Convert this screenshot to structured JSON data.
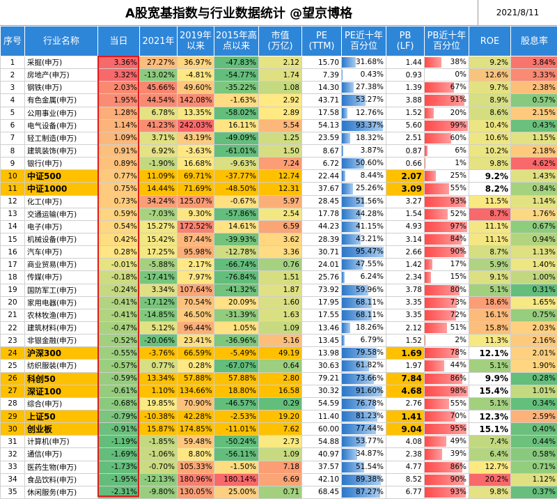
{
  "title": "A股宽基指数与行业数据统计  @望京博格",
  "date": "2021/8/11",
  "columns": [
    "序号",
    "行业名称",
    "当日",
    "2021年",
    "2019年\n以来",
    "2015年高\n点以来",
    "市值\n(万亿)",
    "PE\n(TTM)",
    "PE近十年\n百分位",
    "PB\n(LF)",
    "PB近十年\n百分位",
    "ROE",
    "股息率"
  ],
  "rows": [
    {
      "idx": "1",
      "name": "采掘(申万)",
      "today": "3.36%",
      "y2021": "27.27%",
      "since2019": "36.97%",
      "since2015": "-47.83%",
      "mcap": "2.12",
      "pe": "15.70",
      "pe_pct": "31.68%",
      "pb": "1.44",
      "pb_pct": "38%",
      "roe": "9.2%",
      "div": "3.84%",
      "bold": false,
      "c_today": "#f8696b",
      "c_2021": "#fcbc7b",
      "c_2019": "#fed580",
      "c_2015": "#63be7b",
      "c_mcap": "#e6e383",
      "c_pb": "#ffffff",
      "c_roe": "#dfe182",
      "c_div": "#f8756e"
    },
    {
      "idx": "2",
      "name": "房地产(申万)",
      "today": "3.32%",
      "y2021": "-13.02%",
      "since2019": "-4.81%",
      "since2015": "-54.77%",
      "mcap": "1.74",
      "pe": "7.39",
      "pe_pct": "0.43%",
      "pb": "0.93",
      "pb_pct": "0%",
      "roe": "12.6%",
      "div": "3.33%",
      "bold": false,
      "c_today": "#f8696b",
      "c_2021": "#8ccb7e",
      "c_2019": "#ffe784",
      "c_2015": "#63be7b",
      "c_mcap": "#dee082",
      "c_pb": "#ffffff",
      "c_roe": "#f8c47d",
      "c_div": "#f98a73"
    },
    {
      "idx": "3",
      "name": "钢铁(申万)",
      "today": "2.03%",
      "y2021": "45.66%",
      "since2019": "49.60%",
      "since2015": "-35.22%",
      "mcap": "1.08",
      "pe": "14.30",
      "pe_pct": "27.38%",
      "pb": "1.39",
      "pb_pct": "67%",
      "roe": "9.7%",
      "div": "2.38%",
      "bold": false,
      "c_today": "#f98a72",
      "c_2021": "#f98770",
      "c_2019": "#fdc87e",
      "c_2015": "#7dc67d",
      "c_mcap": "#c5d980",
      "c_pb": "#ffffff",
      "c_roe": "#e3e283",
      "c_div": "#fcbf7b"
    },
    {
      "idx": "4",
      "name": "有色金属(申万)",
      "today": "1.95%",
      "y2021": "44.54%",
      "since2019": "142.08%",
      "since2015": "-1.63%",
      "mcap": "2.92",
      "pe": "43.71",
      "pe_pct": "53.27%",
      "pb": "3.88",
      "pb_pct": "91%",
      "roe": "8.9%",
      "div": "0.57%",
      "bold": false,
      "c_today": "#f98c73",
      "c_2021": "#f98a71",
      "c_2019": "#f98c72",
      "c_2015": "#ffdc81",
      "c_mcap": "#fee983",
      "c_pb": "#ffffff",
      "c_roe": "#d7df82",
      "c_div": "#87c97e"
    },
    {
      "idx": "5",
      "name": "公用事业(申万)",
      "today": "1.28%",
      "y2021": "6.78%",
      "since2019": "13.35%",
      "since2015": "-58.02%",
      "mcap": "2.89",
      "pe": "17.58",
      "pe_pct": "12.76%",
      "pb": "1.52",
      "pb_pct": "20%",
      "roe": "8.6%",
      "div": "2.15%",
      "bold": false,
      "c_today": "#fbae79",
      "c_2021": "#e4e283",
      "c_2019": "#f6e883",
      "c_2015": "#63be7b",
      "c_mcap": "#fee983",
      "c_pb": "#ffffff",
      "c_roe": "#d4de81",
      "c_div": "#fdca7d"
    },
    {
      "idx": "6",
      "name": "电气设备(申万)",
      "today": "1.14%",
      "y2021": "41.23%",
      "since2019": "242.03%",
      "since2015": "16.11%",
      "mcap": "5.54",
      "pe": "54.13",
      "pe_pct": "93.37%",
      "pb": "5.60",
      "pb_pct": "99%",
      "roe": "10.4%",
      "div": "0.43%",
      "bold": false,
      "c_today": "#fcb47a",
      "c_2021": "#f98e73",
      "c_2019": "#f8696b",
      "c_2015": "#fee482",
      "c_mcap": "#fcb77a",
      "c_pb": "#ffffff",
      "c_roe": "#ece582",
      "c_div": "#6ac07c"
    },
    {
      "idx": "7",
      "name": "轻工制造(申万)",
      "today": "1.09%",
      "y2021": "3.71%",
      "since2019": "43.19%",
      "since2015": "-49.09%",
      "mcap": "1.25",
      "pe": "23.59",
      "pe_pct": "18.32%",
      "pb": "2.51",
      "pb_pct": "60%",
      "roe": "10.6%",
      "div": "1.15%",
      "bold": false,
      "c_today": "#fcb77a",
      "c_2021": "#e1e182",
      "c_2019": "#fdcb7e",
      "c_2015": "#63be7b",
      "c_mcap": "#cfdc81",
      "c_pb": "#ffffff",
      "c_roe": "#eee683",
      "c_div": "#e3e283"
    },
    {
      "idx": "8",
      "name": "建筑装饰(申万)",
      "today": "0.91%",
      "y2021": "6.92%",
      "since2019": "-3.63%",
      "since2015": "-61.01%",
      "mcap": "1.50",
      "pe": "8.67",
      "pe_pct": "3.87%",
      "pb": "0.87",
      "pb_pct": "6%",
      "roe": "10.2%",
      "div": "2.18%",
      "bold": false,
      "c_today": "#fdc07c",
      "c_2021": "#e4e283",
      "c_2019": "#ffe784",
      "c_2015": "#63be7b",
      "c_mcap": "#d6de81",
      "c_pb": "#ffffff",
      "c_roe": "#ebe582",
      "c_div": "#fdc97d"
    },
    {
      "idx": "9",
      "name": "银行(申万)",
      "today": "0.89%",
      "y2021": "-1.90%",
      "since2019": "16.68%",
      "since2015": "-9.63%",
      "mcap": "7.24",
      "pe": "6.72",
      "pe_pct": "50.60%",
      "pb": "0.66",
      "pb_pct": "1%",
      "roe": "9.8%",
      "div": "4.62%",
      "bold": false,
      "c_today": "#fdc17c",
      "c_2021": "#c3d880",
      "c_2019": "#fbe883",
      "c_2015": "#d9df82",
      "c_mcap": "#fb9d75",
      "c_pb": "#ffffff",
      "c_roe": "#e4e283",
      "c_div": "#f8696b"
    },
    {
      "idx": "10",
      "name": "中证500",
      "today": "0.77%",
      "y2021": "11.09%",
      "since2019": "69.71%",
      "since2015": "-37.77%",
      "mcap": "12.74",
      "pe": "22.44",
      "pe_pct": "8.44%",
      "pb": "2.07",
      "pb_pct": "25%",
      "roe": "9.2%",
      "div": "1.43%",
      "bold": true,
      "c_today": "#fec97d",
      "c_2021": "#ffc000",
      "c_2019": "#ffc000",
      "c_2015": "#ffc000",
      "c_mcap": "#ffc000",
      "c_pb": "#ffc000",
      "c_roe": "#ffffff",
      "c_div": "#dfe082"
    },
    {
      "idx": "11",
      "name": "中证1000",
      "today": "0.75%",
      "y2021": "14.44%",
      "since2019": "71.69%",
      "since2015": "-48.50%",
      "mcap": "12.31",
      "pe": "37.67",
      "pe_pct": "25.26%",
      "pb": "3.09",
      "pb_pct": "55%",
      "roe": "8.2%",
      "div": "0.84%",
      "bold": true,
      "c_today": "#feca7d",
      "c_2021": "#ffc000",
      "c_2019": "#ffc000",
      "c_2015": "#ffc000",
      "c_mcap": "#ffc000",
      "c_pb": "#ffc000",
      "c_roe": "#ffffff",
      "c_div": "#a5d27f"
    },
    {
      "idx": "12",
      "name": "化工(申万)",
      "today": "0.73%",
      "y2021": "34.24%",
      "since2019": "125.07%",
      "since2015": "-0.67%",
      "mcap": "5.97",
      "pe": "28.45",
      "pe_pct": "51.56%",
      "pb": "3.27",
      "pb_pct": "93%",
      "roe": "11.5%",
      "div": "1.14%",
      "bold": false,
      "c_today": "#fecb7d",
      "c_2021": "#fa9e76",
      "c_2019": "#fa9a74",
      "c_2015": "#fee082",
      "c_mcap": "#fbaf78",
      "c_pb": "#ffffff",
      "c_roe": "#f8e983",
      "c_div": "#e3e283"
    },
    {
      "idx": "13",
      "name": "交通运输(申万)",
      "today": "0.59%",
      "y2021": "-7.03%",
      "since2019": "9.30%",
      "since2015": "-57.86%",
      "mcap": "2.54",
      "pe": "17.78",
      "pe_pct": "44.28%",
      "pb": "1.54",
      "pb_pct": "52%",
      "roe": "8.7%",
      "div": "1.76%",
      "bold": false,
      "c_today": "#fed480",
      "c_2021": "#a9d27f",
      "c_2019": "#fee583",
      "c_2015": "#63be7b",
      "c_mcap": "#f2e783",
      "c_pb": "#ffffff",
      "c_roe": "#f8696b",
      "c_div": "#fbd882"
    },
    {
      "idx": "14",
      "name": "电子(申万)",
      "today": "0.54%",
      "y2021": "15.27%",
      "since2019": "172.52%",
      "since2015": "14.61%",
      "mcap": "6.59",
      "pe": "44.23",
      "pe_pct": "41.15%",
      "pb": "4.93",
      "pb_pct": "97%",
      "roe": "11.1%",
      "div": "0.67%",
      "bold": false,
      "c_today": "#fed780",
      "c_2021": "#f2e783",
      "c_2019": "#f98270",
      "c_2015": "#fee383",
      "c_mcap": "#fba475",
      "c_pb": "#ffffff",
      "c_roe": "#f4e783",
      "c_div": "#8ecc7e"
    },
    {
      "idx": "15",
      "name": "机械设备(申万)",
      "today": "0.42%",
      "y2021": "15.42%",
      "since2019": "87.44%",
      "since2015": "-39.93%",
      "mcap": "3.62",
      "pe": "28.39",
      "pe_pct": "43.21%",
      "pb": "3.14",
      "pb_pct": "84%",
      "roe": "11.1%",
      "div": "0.94%",
      "bold": false,
      "c_today": "#fede81",
      "c_2021": "#f2e783",
      "c_2019": "#fcb87b",
      "c_2015": "#74c37c",
      "c_mcap": "#fed780",
      "c_pb": "#ffffff",
      "c_roe": "#f4e783",
      "c_div": "#b2d47f"
    },
    {
      "idx": "16",
      "name": "汽车(申万)",
      "today": "0.28%",
      "y2021": "17.25%",
      "since2019": "95.98%",
      "since2015": "-12.78%",
      "mcap": "3.36",
      "pe": "30.71",
      "pe_pct": "95.47%",
      "pb": "2.66",
      "pb_pct": "90%",
      "roe": "8.7%",
      "div": "1.13%",
      "bold": false,
      "c_today": "#ffe583",
      "c_2021": "#f5e883",
      "c_2019": "#fbaf78",
      "c_2015": "#cfdc81",
      "c_mcap": "#ffdc81",
      "c_pb": "#ffffff",
      "c_roe": "#d5de81",
      "c_div": "#dfe082"
    },
    {
      "idx": "17",
      "name": "商业贸易(申万)",
      "today": "-0.01%",
      "y2021": "-5.88%",
      "since2019": "2.17%",
      "since2015": "-66.74%",
      "mcap": "0.76",
      "pe": "24.01",
      "pe_pct": "47.55%",
      "pb": "1.42",
      "pb_pct": "17%",
      "roe": "5.9%",
      "div": "1.40%",
      "bold": false,
      "c_today": "#e6e383",
      "c_2021": "#a5d17f",
      "c_2019": "#fee984",
      "c_2015": "#63be7b",
      "c_mcap": "#a6d17f",
      "c_pb": "#ffffff",
      "c_roe": "#afd380",
      "c_div": "#ede683"
    },
    {
      "idx": "18",
      "name": "传媒(申万)",
      "today": "-0.18%",
      "y2021": "-17.41%",
      "since2019": "7.97%",
      "since2015": "-76.84%",
      "mcap": "1.51",
      "pe": "25.76",
      "pe_pct": "6.24%",
      "pb": "2.34",
      "pb_pct": "15%",
      "roe": "9.1%",
      "div": "1.00%",
      "bold": false,
      "c_today": "#cddb81",
      "c_2021": "#78c57c",
      "c_2019": "#fee683",
      "c_2015": "#63be7b",
      "c_mcap": "#d6de81",
      "c_pb": "#ffffff",
      "c_roe": "#dce082",
      "c_div": "#c2d880"
    },
    {
      "idx": "19",
      "name": "国防军工(申万)",
      "today": "-0.24%",
      "y2021": "3.34%",
      "since2019": "107.64%",
      "since2015": "-41.32%",
      "mcap": "1.87",
      "pe": "73.92",
      "pe_pct": "59.96%",
      "pb": "3.78",
      "pb_pct": "80%",
      "roe": "5.1%",
      "div": "0.31%",
      "bold": false,
      "c_today": "#c5d980",
      "c_2021": "#dfe082",
      "c_2019": "#fba676",
      "c_2015": "#72c37c",
      "c_mcap": "#e0e182",
      "c_pb": "#ffffff",
      "c_roe": "#a2d07f",
      "c_div": "#63be7b"
    },
    {
      "idx": "20",
      "name": "家用电器(申万)",
      "today": "-0.41%",
      "y2021": "-17.12%",
      "since2019": "70.54%",
      "since2015": "20.09%",
      "mcap": "1.60",
      "pe": "17.95",
      "pe_pct": "68.11%",
      "pb": "3.35",
      "pb_pct": "73%",
      "roe": "18.6%",
      "div": "1.65%",
      "bold": false,
      "c_today": "#b0d47f",
      "c_2021": "#79c57c",
      "c_2019": "#fcc27c",
      "c_2015": "#fee182",
      "c_mcap": "#d9df82",
      "c_pb": "#ffffff",
      "c_roe": "#fb9d75",
      "c_div": "#f6e883"
    },
    {
      "idx": "21",
      "name": "农林牧渔(申万)",
      "today": "-0.41%",
      "y2021": "-14.85%",
      "since2019": "46.50%",
      "since2015": "-31.39%",
      "mcap": "1.63",
      "pe": "17.55",
      "pe_pct": "68.11%",
      "pb": "3.35",
      "pb_pct": "72%",
      "roe": "16.1%",
      "div": "0.75%",
      "bold": false,
      "c_today": "#b0d47f",
      "c_2021": "#82c87d",
      "c_2019": "#fdcc7e",
      "c_2015": "#92cd7e",
      "c_mcap": "#dae082",
      "c_pb": "#ffffff",
      "c_roe": "#fbbb7a",
      "c_div": "#96cd7e"
    },
    {
      "idx": "22",
      "name": "建筑材料(申万)",
      "today": "-0.47%",
      "y2021": "5.12%",
      "since2019": "96.44%",
      "since2015": "1.05%",
      "mcap": "1.09",
      "pe": "13.46",
      "pe_pct": "18.26%",
      "pb": "2.12",
      "pb_pct": "51%",
      "roe": "15.8%",
      "div": "2.03%",
      "bold": false,
      "c_today": "#a9d27f",
      "c_2021": "#e2e283",
      "c_2019": "#fbaf78",
      "c_2015": "#fee182",
      "c_mcap": "#c7da80",
      "c_pb": "#ffffff",
      "c_roe": "#fbbe7b",
      "c_div": "#fed080"
    },
    {
      "idx": "23",
      "name": "非银金融(申万)",
      "today": "-0.52%",
      "y2021": "-20.06%",
      "since2019": "23.41%",
      "since2015": "-36.96%",
      "mcap": "5.16",
      "pe": "13.45",
      "pe_pct": "6.79%",
      "pb": "1.52",
      "pb_pct": "2%",
      "roe": "11.3%",
      "div": "2.16%",
      "bold": false,
      "c_today": "#a1d07f",
      "c_2021": "#6bc07c",
      "c_2019": "#fee083",
      "c_2015": "#7ec77d",
      "c_mcap": "#fcbf7b",
      "c_pb": "#ffffff",
      "c_roe": "#f6e883",
      "c_div": "#fdca7d"
    },
    {
      "idx": "24",
      "name": "沪深300",
      "today": "-0.55%",
      "y2021": "-3.76%",
      "since2019": "66.59%",
      "since2015": "-5.49%",
      "mcap": "49.19",
      "pe": "13.98",
      "pe_pct": "79.58%",
      "pb": "1.69",
      "pb_pct": "78%",
      "roe": "12.1%",
      "div": "2.01%",
      "bold": true,
      "c_today": "#9dcf7f",
      "c_2021": "#ffc000",
      "c_2019": "#ffc000",
      "c_2015": "#ffc000",
      "c_mcap": "#ffc000",
      "c_pb": "#ffc000",
      "c_roe": "#ffffff",
      "c_div": "#fed080"
    },
    {
      "idx": "25",
      "name": "纺织服装(申万)",
      "today": "-0.57%",
      "y2021": "0.77%",
      "since2019": "0.28%",
      "since2015": "-67.07%",
      "mcap": "0.64",
      "pe": "30.63",
      "pe_pct": "61.82%",
      "pb": "1.97",
      "pb_pct": "44%",
      "roe": "5.1%",
      "div": "1.90%",
      "bold": false,
      "c_today": "#9bce7e",
      "c_2021": "#d7df82",
      "c_2019": "#fee884",
      "c_2015": "#63be7b",
      "c_mcap": "#9ccf7f",
      "c_pb": "#ffffff",
      "c_roe": "#a2d07f",
      "c_div": "#fed580"
    },
    {
      "idx": "26",
      "name": "科创50",
      "today": "-0.59%",
      "y2021": "13.34%",
      "since2019": "57.88%",
      "since2015": "57.88%",
      "mcap": "2.80",
      "pe": "79.21",
      "pe_pct": "73.66%",
      "pb": "7.84",
      "pb_pct": "86%",
      "roe": "9.9%",
      "div": "0.28%",
      "bold": true,
      "c_today": "#98cd7e",
      "c_2021": "#ffc000",
      "c_2019": "#ffc000",
      "c_2015": "#ffc000",
      "c_mcap": "#ffc000",
      "c_pb": "#ffc000",
      "c_roe": "#ffffff",
      "c_div": "#63be7b"
    },
    {
      "idx": "27",
      "name": "深证100",
      "today": "-0.61%",
      "y2021": "1.10%",
      "since2019": "134.66%",
      "since2015": "18.80%",
      "mcap": "16.58",
      "pe": "30.32",
      "pe_pct": "91.60%",
      "pb": "4.68",
      "pb_pct": "98%",
      "roe": "15.4%",
      "div": "1.01%",
      "bold": true,
      "c_today": "#95cc7e",
      "c_2021": "#ffc000",
      "c_2019": "#ffc000",
      "c_2015": "#ffc000",
      "c_mcap": "#ffc000",
      "c_pb": "#ffc000",
      "c_roe": "#ffffff",
      "c_div": "#c4d980"
    },
    {
      "idx": "28",
      "name": "综合(申万)",
      "today": "-0.68%",
      "y2021": "19.85%",
      "since2019": "70.90%",
      "since2015": "-46.57%",
      "mcap": "0.29",
      "pe": "54.59",
      "pe_pct": "76.78%",
      "pb": "2.76",
      "pb_pct": "55%",
      "roe": "5.1%",
      "div": "0.34%",
      "bold": false,
      "c_today": "#8bca7e",
      "c_2021": "#f8e983",
      "c_2019": "#fcc27c",
      "c_2015": "#63be7b",
      "c_mcap": "#63be7b",
      "c_pb": "#ffffff",
      "c_roe": "#a2d07f",
      "c_div": "#65bf7c"
    },
    {
      "idx": "29",
      "name": "上证50",
      "today": "-0.79%",
      "y2021": "-10.38%",
      "since2019": "42.28%",
      "since2015": "-2.53%",
      "mcap": "19.20",
      "pe": "11.40",
      "pe_pct": "81.23%",
      "pb": "1.41",
      "pb_pct": "70%",
      "roe": "12.3%",
      "div": "2.59%",
      "bold": true,
      "c_today": "#7bc57d",
      "c_2021": "#ffc000",
      "c_2019": "#ffc000",
      "c_2015": "#ffc000",
      "c_mcap": "#ffc000",
      "c_pb": "#ffc000",
      "c_roe": "#ffffff",
      "c_div": "#fcb279"
    },
    {
      "idx": "30",
      "name": "创业板",
      "today": "-0.91%",
      "y2021": "15.87%",
      "since2019": "174.85%",
      "since2015": "-11.01%",
      "mcap": "7.62",
      "pe": "60.00",
      "pe_pct": "77.44%",
      "pb": "9.04",
      "pb_pct": "95%",
      "roe": "15.1%",
      "div": "0.40%",
      "bold": true,
      "c_today": "#6ac07c",
      "c_2021": "#ffc000",
      "c_2019": "#ffc000",
      "c_2015": "#ffc000",
      "c_mcap": "#ffc000",
      "c_pb": "#ffc000",
      "c_roe": "#ffffff",
      "c_div": "#6ac07c"
    },
    {
      "idx": "31",
      "name": "计算机(申万)",
      "today": "-1.19%",
      "y2021": "-1.85%",
      "since2019": "59.48%",
      "since2015": "-50.24%",
      "mcap": "2.73",
      "pe": "54.88",
      "pe_pct": "53.77%",
      "pb": "4.08",
      "pb_pct": "49%",
      "roe": "7.4%",
      "div": "0.44%",
      "bold": false,
      "c_today": "#63be7b",
      "c_2021": "#c3d880",
      "c_2019": "#fdc77e",
      "c_2015": "#63be7b",
      "c_mcap": "#f8e983",
      "c_pb": "#ffffff",
      "c_roe": "#c2d880",
      "c_div": "#6dc17c"
    },
    {
      "idx": "32",
      "name": "通信(申万)",
      "today": "-1.69%",
      "y2021": "-1.06%",
      "since2019": "8.80%",
      "since2015": "-56.11%",
      "mcap": "1.09",
      "pe": "40.97",
      "pe_pct": "34.87%",
      "pb": "2.38",
      "pb_pct": "39%",
      "roe": "6.4%",
      "div": "0.58%",
      "bold": false,
      "c_today": "#63be7b",
      "c_2021": "#c8da80",
      "c_2019": "#fee683",
      "c_2015": "#63be7b",
      "c_mcap": "#c7da80",
      "c_pb": "#ffffff",
      "c_roe": "#b4d580",
      "c_div": "#88c97e"
    },
    {
      "idx": "33",
      "name": "医药生物(申万)",
      "today": "-1.73%",
      "y2021": "-0.70%",
      "since2019": "105.33%",
      "since2015": "-1.50%",
      "mcap": "7.18",
      "pe": "37.57",
      "pe_pct": "51.54%",
      "pb": "4.77",
      "pb_pct": "86%",
      "roe": "12.7%",
      "div": "0.71%",
      "bold": false,
      "c_today": "#63be7b",
      "c_2021": "#cbdb81",
      "c_2019": "#fba776",
      "c_2015": "#fedc81",
      "c_mcap": "#fb9d75",
      "c_pb": "#ffffff",
      "c_roe": "#fde982",
      "c_div": "#93cd7e"
    },
    {
      "idx": "34",
      "name": "食品饮料(申万)",
      "today": "-1.95%",
      "y2021": "-12.13%",
      "since2019": "180.96%",
      "since2015": "180.14%",
      "mcap": "6.69",
      "pe": "42.10",
      "pe_pct": "89.38%",
      "pb": "8.52",
      "pb_pct": "90%",
      "roe": "20.2%",
      "div": "1.12%",
      "bold": false,
      "c_today": "#63be7b",
      "c_2021": "#8fcc7e",
      "c_2019": "#f97f6f",
      "c_2015": "#f8696b",
      "c_mcap": "#fba475",
      "c_pb": "#ffffff",
      "c_roe": "#f8696b",
      "c_div": "#dfe082"
    },
    {
      "idx": "35",
      "name": "休闲服务(申万)",
      "today": "-2.31%",
      "y2021": "-9.80%",
      "since2019": "130.05%",
      "since2015": "25.00%",
      "mcap": "0.71",
      "pe": "68.45",
      "pe_pct": "87.27%",
      "pb": "6.77",
      "pb_pct": "93%",
      "roe": "9.8%",
      "div": "0.37%",
      "bold": false,
      "c_today": "#63be7b",
      "c_2021": "#98ce7e",
      "c_2019": "#fa9e75",
      "c_2015": "#fdcf7f",
      "c_mcap": "#a2d07f",
      "c_pb": "#ffffff",
      "c_roe": "#e4e283",
      "c_div": "#66bf7c"
    }
  ]
}
